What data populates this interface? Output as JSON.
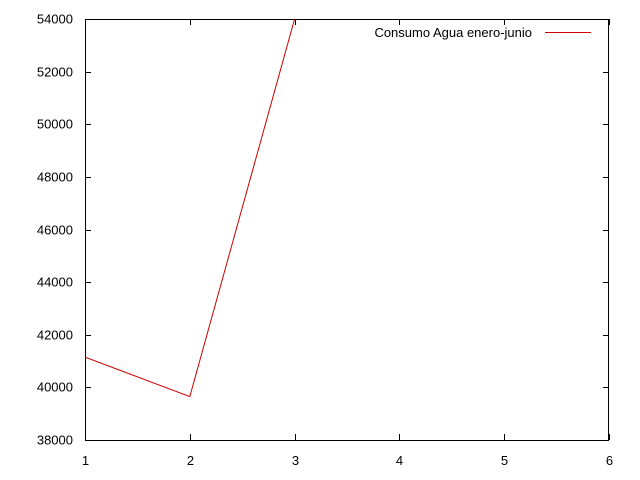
{
  "chart_data": {
    "type": "line",
    "title": "",
    "xlabel": "",
    "ylabel": "",
    "xlim": [
      1,
      6
    ],
    "ylim": [
      38000,
      54000
    ],
    "x_ticks": [
      1,
      2,
      3,
      4,
      5,
      6
    ],
    "y_ticks": [
      38000,
      40000,
      42000,
      44000,
      46000,
      48000,
      50000,
      52000,
      54000
    ],
    "grid": false,
    "legend_position": "top-right",
    "series": [
      {
        "name": "Consumo Agua enero-junio",
        "color": "#cc0000",
        "x": [
          1,
          2,
          3
        ],
        "y": [
          41150,
          39650,
          54000
        ]
      }
    ]
  }
}
